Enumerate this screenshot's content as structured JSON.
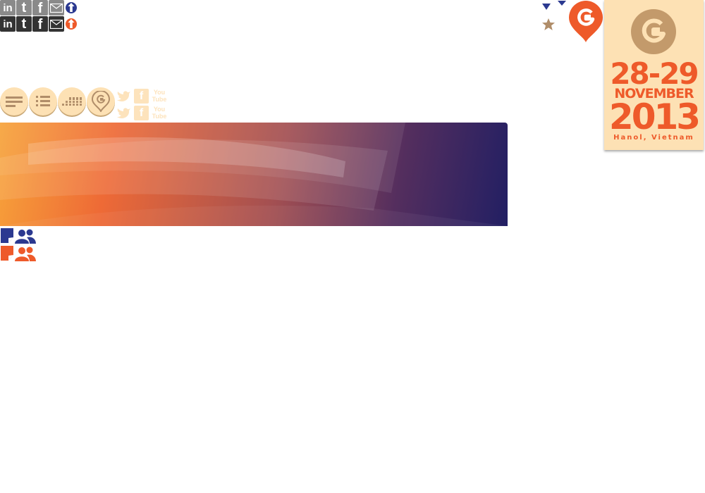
{
  "social_share": {
    "items": [
      "linkedin",
      "twitter",
      "facebook",
      "email",
      "share"
    ],
    "linkedin_text": "in",
    "twitter_text": "t",
    "facebook_text": "f"
  },
  "top_controls": {
    "icons": [
      "dropdown-arrow-icon",
      "dropdown-arrow-icon",
      "star-icon",
      "map-pin-logo-icon"
    ]
  },
  "view_controls": {
    "buttons": [
      "text-view",
      "list-view",
      "grid-view",
      "location-view"
    ]
  },
  "media_links": {
    "youtube_text": "You Tube",
    "facebook_text": "f"
  },
  "event": {
    "dates": "28-29",
    "month": "NOVEMBER",
    "year": "2013",
    "location": "Hanol, Vietnam"
  },
  "colors": {
    "accent_orange": "#ee5a2a",
    "navy": "#2b3990",
    "tan": "#fde1b4",
    "brown": "#c39a6b"
  }
}
